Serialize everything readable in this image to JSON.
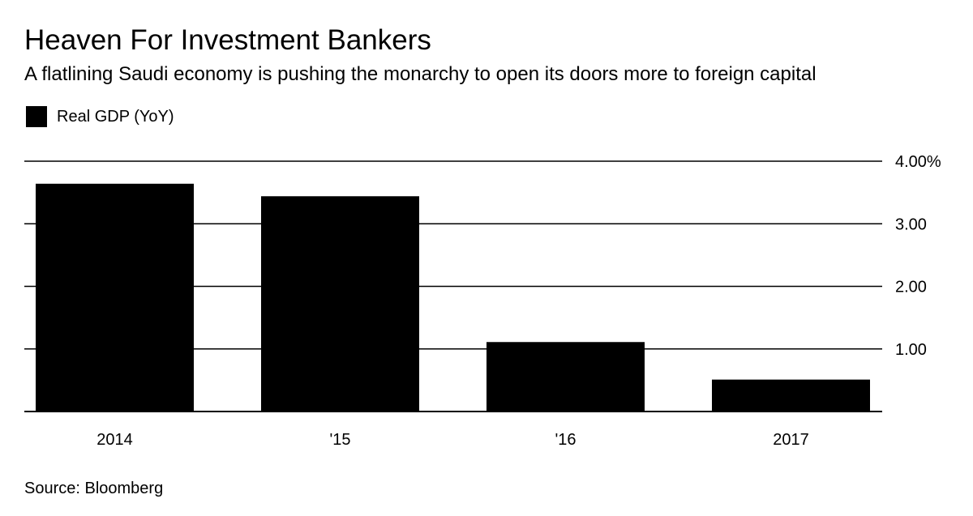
{
  "chart_data": {
    "type": "bar",
    "title": "Heaven For Investment Bankers",
    "subtitle": "A flatlining Saudi economy is pushing the monarchy to open its doors more to foreign capital",
    "categories": [
      "2014",
      "'15",
      "'16",
      "2017"
    ],
    "series": [
      {
        "name": "Real GDP (YoY)",
        "values": [
          3.64,
          3.44,
          1.11,
          0.51
        ],
        "color": "#000000"
      }
    ],
    "ylim": [
      0,
      4
    ],
    "yticks": [
      1,
      2,
      3,
      4
    ],
    "ytick_labels": [
      "1.00",
      "2.00",
      "3.00",
      "4.00%"
    ],
    "grid": true,
    "legend": "top-left",
    "y_axis_side": "right",
    "xlabel": "",
    "ylabel": "",
    "source": "Source: Bloomberg"
  }
}
